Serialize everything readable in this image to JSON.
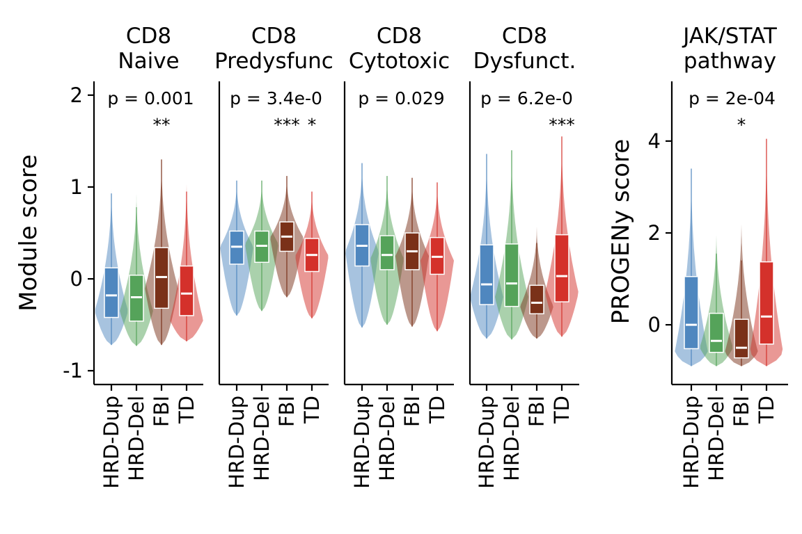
{
  "chart_data": {
    "type": "violin",
    "categories": [
      "HRD-Dup",
      "HRD-Del",
      "FBI",
      "TD"
    ],
    "colors": {
      "HRD-Dup": "#4f87bf",
      "HRD-Del": "#55a35a",
      "FBI": "#7a3119",
      "TD": "#d4312b"
    },
    "panels": [
      {
        "title_lines": [
          "CD8",
          "Naive"
        ],
        "ylabel": "Module score",
        "ylim": [
          -1.15,
          2.15
        ],
        "yticks": [
          -1,
          0,
          1,
          2
        ],
        "ytick_labels": [
          "-1",
          "0",
          "1",
          "2"
        ],
        "pvalue": "p = 0.001",
        "significance": [
          {
            "category": "FBI",
            "label": "**"
          }
        ],
        "series": [
          {
            "category": "HRD-Dup",
            "min": -0.72,
            "q1": -0.42,
            "median": -0.18,
            "q3": 0.12,
            "max": 1.02,
            "whisker_top": 0.93,
            "mode": -0.35
          },
          {
            "category": "HRD-Del",
            "min": -0.73,
            "q1": -0.46,
            "median": -0.2,
            "q3": 0.04,
            "max": 0.97,
            "whisker_top": 0.78,
            "mode": -0.35
          },
          {
            "category": "FBI",
            "min": -0.72,
            "q1": -0.32,
            "median": 0.02,
            "q3": 0.34,
            "max": 1.32,
            "whisker_top": 1.3,
            "mode": -0.1
          },
          {
            "category": "TD",
            "min": -0.68,
            "q1": -0.4,
            "median": -0.16,
            "q3": 0.14,
            "max": 1.12,
            "whisker_top": 0.95,
            "mode": -0.45
          }
        ]
      },
      {
        "title_lines": [
          "CD8",
          "Predysfunc"
        ],
        "ylabel": "",
        "ylim": [
          -1.15,
          2.15
        ],
        "yticks": [],
        "ytick_labels": [],
        "pvalue": "p = 3.4e-0",
        "significance": [
          {
            "category": "FBI",
            "label": "***"
          },
          {
            "category": "TD",
            "label": "*"
          }
        ],
        "series": [
          {
            "category": "HRD-Dup",
            "min": -0.4,
            "q1": 0.16,
            "median": 0.35,
            "q3": 0.52,
            "max": 1.07,
            "whisker_top": 1.07,
            "mode": 0.35
          },
          {
            "category": "HRD-Del",
            "min": -0.35,
            "q1": 0.18,
            "median": 0.36,
            "q3": 0.52,
            "max": 1.07,
            "whisker_top": 1.07,
            "mode": 0.38
          },
          {
            "category": "FBI",
            "min": -0.2,
            "q1": 0.3,
            "median": 0.46,
            "q3": 0.62,
            "max": 1.12,
            "whisker_top": 1.12,
            "mode": 0.45
          },
          {
            "category": "TD",
            "min": -0.43,
            "q1": 0.08,
            "median": 0.26,
            "q3": 0.44,
            "max": 0.95,
            "whisker_top": 0.95,
            "mode": 0.25
          }
        ]
      },
      {
        "title_lines": [
          "CD8",
          "Cytotoxic"
        ],
        "ylabel": "",
        "ylim": [
          -1.15,
          2.15
        ],
        "yticks": [],
        "ytick_labels": [],
        "pvalue": "p = 0.029",
        "significance": [],
        "series": [
          {
            "category": "HRD-Dup",
            "min": -0.53,
            "q1": 0.14,
            "median": 0.36,
            "q3": 0.59,
            "max": 1.26,
            "whisker_top": 1.26,
            "mode": 0.3
          },
          {
            "category": "HRD-Del",
            "min": -0.5,
            "q1": 0.1,
            "median": 0.26,
            "q3": 0.47,
            "max": 1.12,
            "whisker_top": 1.12,
            "mode": 0.22
          },
          {
            "category": "FBI",
            "min": -0.52,
            "q1": 0.1,
            "median": 0.3,
            "q3": 0.5,
            "max": 1.1,
            "whisker_top": 1.1,
            "mode": 0.25
          },
          {
            "category": "TD",
            "min": -0.57,
            "q1": 0.05,
            "median": 0.24,
            "q3": 0.45,
            "max": 1.05,
            "whisker_top": 1.05,
            "mode": 0.2
          }
        ]
      },
      {
        "title_lines": [
          "CD8",
          "Dysfunct."
        ],
        "ylabel": "",
        "ylim": [
          -1.15,
          2.15
        ],
        "yticks": [],
        "ytick_labels": [],
        "pvalue": "p = 6.2e-0",
        "significance": [
          {
            "category": "TD",
            "label": "***"
          }
        ],
        "series": [
          {
            "category": "HRD-Dup",
            "min": -0.65,
            "q1": -0.28,
            "median": -0.06,
            "q3": 0.37,
            "max": 1.36,
            "whisker_top": 1.36,
            "mode": -0.2
          },
          {
            "category": "HRD-Del",
            "min": -0.66,
            "q1": -0.3,
            "median": -0.05,
            "q3": 0.38,
            "max": 1.4,
            "whisker_top": 1.4,
            "mode": -0.2
          },
          {
            "category": "FBI",
            "min": -0.65,
            "q1": -0.38,
            "median": -0.26,
            "q3": -0.07,
            "max": 0.6,
            "whisker_top": 0.39,
            "mode": -0.3
          },
          {
            "category": "TD",
            "min": -0.63,
            "q1": -0.25,
            "median": 0.03,
            "q3": 0.48,
            "max": 1.55,
            "whisker_top": 1.55,
            "mode": -0.15
          }
        ]
      },
      {
        "title_lines": [
          "JAK/STAT",
          "pathway"
        ],
        "ylabel": "PROGENy score",
        "ylim": [
          -1.3,
          5.3
        ],
        "yticks": [
          0,
          2,
          4
        ],
        "ytick_labels": [
          "0",
          "2",
          "4"
        ],
        "pvalue": "p = 2e-04",
        "significance": [
          {
            "category": "FBI",
            "label": "*"
          }
        ],
        "series": [
          {
            "category": "HRD-Dup",
            "min": -0.9,
            "q1": -0.52,
            "median": 0.0,
            "q3": 1.05,
            "max": 3.4,
            "whisker_top": 3.4,
            "mode": -0.6
          },
          {
            "category": "HRD-Del",
            "min": -0.9,
            "q1": -0.6,
            "median": -0.35,
            "q3": 0.25,
            "max": 2.1,
            "whisker_top": 1.55,
            "mode": -0.5
          },
          {
            "category": "FBI",
            "min": -0.9,
            "q1": -0.72,
            "median": -0.5,
            "q3": 0.12,
            "max": 2.35,
            "whisker_top": 1.4,
            "mode": -0.6
          },
          {
            "category": "TD",
            "min": -0.9,
            "q1": -0.42,
            "median": 0.18,
            "q3": 1.37,
            "max": 4.05,
            "whisker_top": 4.05,
            "mode": -0.6
          }
        ]
      }
    ]
  }
}
